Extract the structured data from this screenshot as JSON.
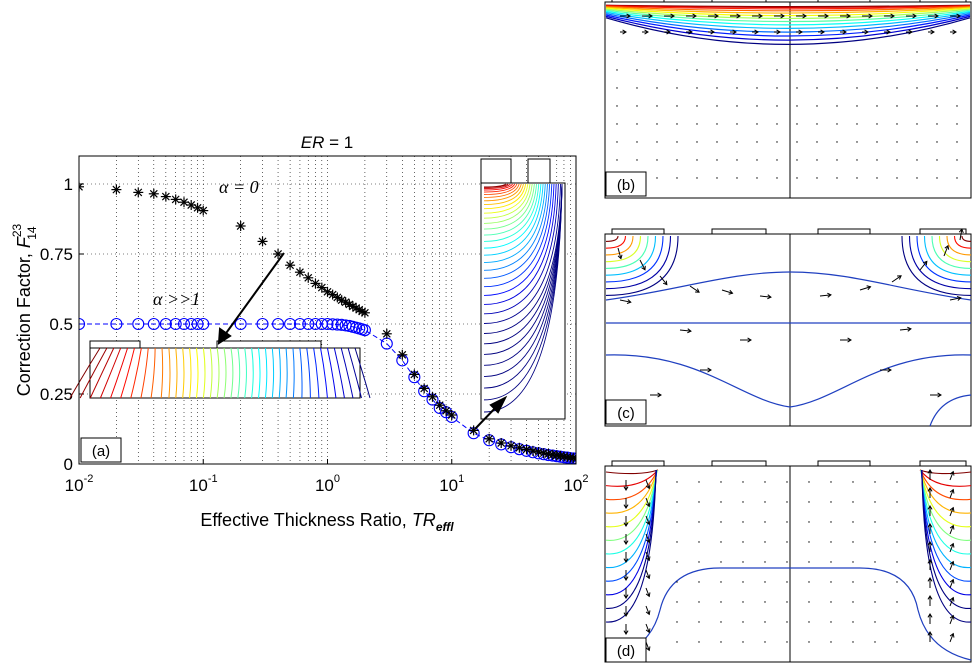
{
  "chart_data": [
    {
      "panel": "(a)",
      "type": "scatter",
      "title_italic": "ER",
      "title_rest": " = 1",
      "xlabel_main": "Effective Thickness Ratio, ",
      "xlabel_italic": "TR",
      "xlabel_sub": "effl",
      "ylabel_main": "Correction Factor, ",
      "ylabel_F": "F",
      "ylabel_sup": "23",
      "ylabel_sub": "14",
      "x_scale": "log",
      "xlim": [
        0.01,
        100
      ],
      "ylim": [
        0,
        1.1
      ],
      "x_ticks": [
        {
          "value": 0.01,
          "base": "10",
          "exp": "-2"
        },
        {
          "value": 0.1,
          "base": "10",
          "exp": "-1"
        },
        {
          "value": 1,
          "base": "10",
          "exp": "0"
        },
        {
          "value": 10,
          "base": "10",
          "exp": "1"
        },
        {
          "value": 100,
          "base": "10",
          "exp": "2"
        }
      ],
      "y_ticks": [
        {
          "value": 0,
          "label": "0"
        },
        {
          "value": 0.25,
          "label": "0.25"
        },
        {
          "value": 0.5,
          "label": "0.5"
        },
        {
          "value": 0.75,
          "label": "0.75"
        },
        {
          "value": 1,
          "label": "1"
        }
      ],
      "grid": "dotted",
      "series": [
        {
          "name": "α = 0",
          "marker": "asterisk",
          "color": "#000000",
          "points": [
            [
              0.01,
              0.99
            ],
            [
              0.02,
              0.98
            ],
            [
              0.03,
              0.97
            ],
            [
              0.04,
              0.965
            ],
            [
              0.05,
              0.955
            ],
            [
              0.06,
              0.945
            ],
            [
              0.07,
              0.935
            ],
            [
              0.08,
              0.925
            ],
            [
              0.09,
              0.915
            ],
            [
              0.1,
              0.905
            ],
            [
              0.2,
              0.85
            ],
            [
              0.3,
              0.795
            ],
            [
              0.4,
              0.75
            ],
            [
              0.5,
              0.71
            ],
            [
              0.6,
              0.685
            ],
            [
              0.7,
              0.665
            ],
            [
              0.8,
              0.645
            ],
            [
              0.9,
              0.63
            ],
            [
              1.0,
              0.615
            ],
            [
              1.1,
              0.605
            ],
            [
              1.2,
              0.595
            ],
            [
              1.3,
              0.585
            ],
            [
              1.4,
              0.578
            ],
            [
              1.5,
              0.57
            ],
            [
              1.6,
              0.563
            ],
            [
              1.7,
              0.557
            ],
            [
              1.8,
              0.551
            ],
            [
              1.9,
              0.545
            ],
            [
              2.0,
              0.54
            ],
            [
              3,
              0.465
            ],
            [
              4,
              0.39
            ],
            [
              5,
              0.32
            ],
            [
              6,
              0.27
            ],
            [
              7,
              0.24
            ],
            [
              8,
              0.21
            ],
            [
              9,
              0.19
            ],
            [
              10,
              0.175
            ],
            [
              15,
              0.12
            ],
            [
              20,
              0.09
            ],
            [
              25,
              0.075
            ],
            [
              30,
              0.065
            ],
            [
              35,
              0.058
            ],
            [
              40,
              0.052
            ],
            [
              45,
              0.047
            ],
            [
              50,
              0.043
            ],
            [
              55,
              0.039
            ],
            [
              60,
              0.036
            ],
            [
              65,
              0.033
            ],
            [
              70,
              0.031
            ],
            [
              75,
              0.029
            ],
            [
              80,
              0.027
            ],
            [
              85,
              0.025
            ],
            [
              90,
              0.023
            ],
            [
              95,
              0.022
            ],
            [
              100,
              0.02
            ]
          ]
        },
        {
          "name": "α >>1",
          "marker": "circle",
          "color": "#0000ff",
          "line": "dashed",
          "points": [
            [
              0.01,
              0.5
            ],
            [
              0.02,
              0.5
            ],
            [
              0.03,
              0.5
            ],
            [
              0.04,
              0.5
            ],
            [
              0.05,
              0.5
            ],
            [
              0.06,
              0.5
            ],
            [
              0.07,
              0.5
            ],
            [
              0.08,
              0.5
            ],
            [
              0.09,
              0.5
            ],
            [
              0.1,
              0.5
            ],
            [
              0.2,
              0.5
            ],
            [
              0.3,
              0.5
            ],
            [
              0.4,
              0.5
            ],
            [
              0.5,
              0.5
            ],
            [
              0.6,
              0.5
            ],
            [
              0.7,
              0.5
            ],
            [
              0.8,
              0.5
            ],
            [
              0.9,
              0.5
            ],
            [
              1.0,
              0.5
            ],
            [
              1.1,
              0.499
            ],
            [
              1.2,
              0.498
            ],
            [
              1.3,
              0.497
            ],
            [
              1.4,
              0.495
            ],
            [
              1.5,
              0.493
            ],
            [
              1.6,
              0.49
            ],
            [
              1.7,
              0.487
            ],
            [
              1.8,
              0.484
            ],
            [
              1.9,
              0.481
            ],
            [
              2.0,
              0.478
            ],
            [
              3,
              0.43
            ],
            [
              4,
              0.37
            ],
            [
              5,
              0.31
            ],
            [
              6,
              0.26
            ],
            [
              7,
              0.23
            ],
            [
              8,
              0.2
            ],
            [
              9,
              0.185
            ],
            [
              10,
              0.168
            ],
            [
              15,
              0.11
            ],
            [
              20,
              0.085
            ],
            [
              25,
              0.07
            ],
            [
              30,
              0.06
            ],
            [
              35,
              0.053
            ],
            [
              40,
              0.047
            ],
            [
              45,
              0.042
            ],
            [
              50,
              0.038
            ],
            [
              55,
              0.035
            ],
            [
              60,
              0.032
            ],
            [
              65,
              0.03
            ],
            [
              70,
              0.028
            ],
            [
              75,
              0.026
            ],
            [
              80,
              0.024
            ],
            [
              85,
              0.023
            ],
            [
              90,
              0.021
            ],
            [
              95,
              0.02
            ],
            [
              100,
              0.019
            ]
          ]
        }
      ],
      "annotations": [
        {
          "text": "α = 0"
        },
        {
          "text": "α >>1"
        }
      ]
    },
    {
      "panel": "(b)",
      "type": "contour"
    },
    {
      "panel": "(c)",
      "type": "contour"
    },
    {
      "panel": "(d)",
      "type": "contour"
    }
  ]
}
